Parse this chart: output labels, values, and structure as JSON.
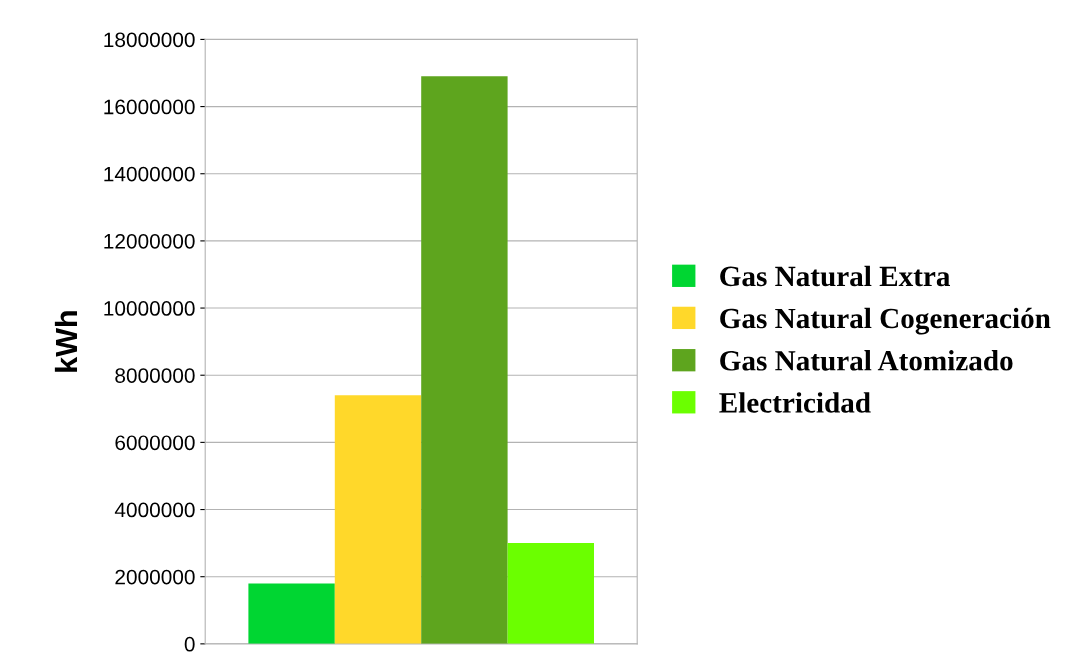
{
  "chart_data": {
    "type": "bar",
    "ylabel": "kWh",
    "categories": [
      null
    ],
    "series": [
      {
        "name": "Gas Natural Extra",
        "color": "#00d632",
        "values": [
          1800000
        ]
      },
      {
        "name": "Gas Natural Cogeneración",
        "color": "#ffd82a",
        "values": [
          7400000
        ]
      },
      {
        "name": "Gas Natural Atomizado",
        "color": "#5ea51e",
        "values": [
          16900000
        ]
      },
      {
        "name": "Electricidad",
        "color": "#6bff00",
        "values": [
          3000000
        ]
      }
    ],
    "ylim": [
      0,
      18000000
    ],
    "yticks": [
      0,
      2000000,
      4000000,
      6000000,
      8000000,
      10000000,
      12000000,
      14000000,
      16000000,
      18000000
    ],
    "grid": "y",
    "legend": "right"
  }
}
